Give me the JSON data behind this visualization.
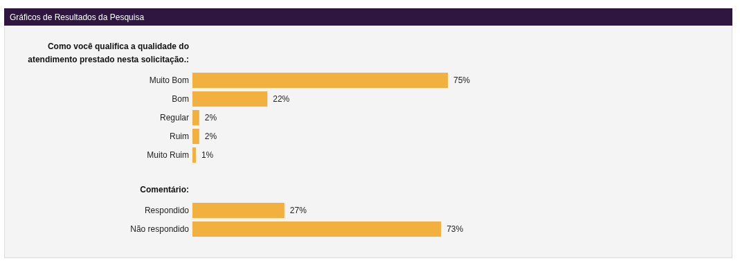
{
  "chart_data": [
    {
      "type": "bar",
      "orientation": "horizontal",
      "title": "Gráficos de Resultados da Pesquisa",
      "subtitle": "Como você qualifica a qualidade do atendimento prestado nesta solicitação.:",
      "categories": [
        "Muito Bom",
        "Bom",
        "Regular",
        "Ruim",
        "Muito Ruim"
      ],
      "values": [
        75,
        22,
        2,
        2,
        1
      ],
      "value_labels": [
        "75%",
        "22%",
        "2%",
        "2%",
        "1%"
      ],
      "color": "#f2b13f"
    },
    {
      "type": "bar",
      "orientation": "horizontal",
      "subtitle": "Comentário:",
      "categories": [
        "Respondido",
        "Não respondido"
      ],
      "values": [
        27,
        73
      ],
      "value_labels": [
        "27%",
        "73%"
      ],
      "color": "#f2b13f"
    }
  ]
}
